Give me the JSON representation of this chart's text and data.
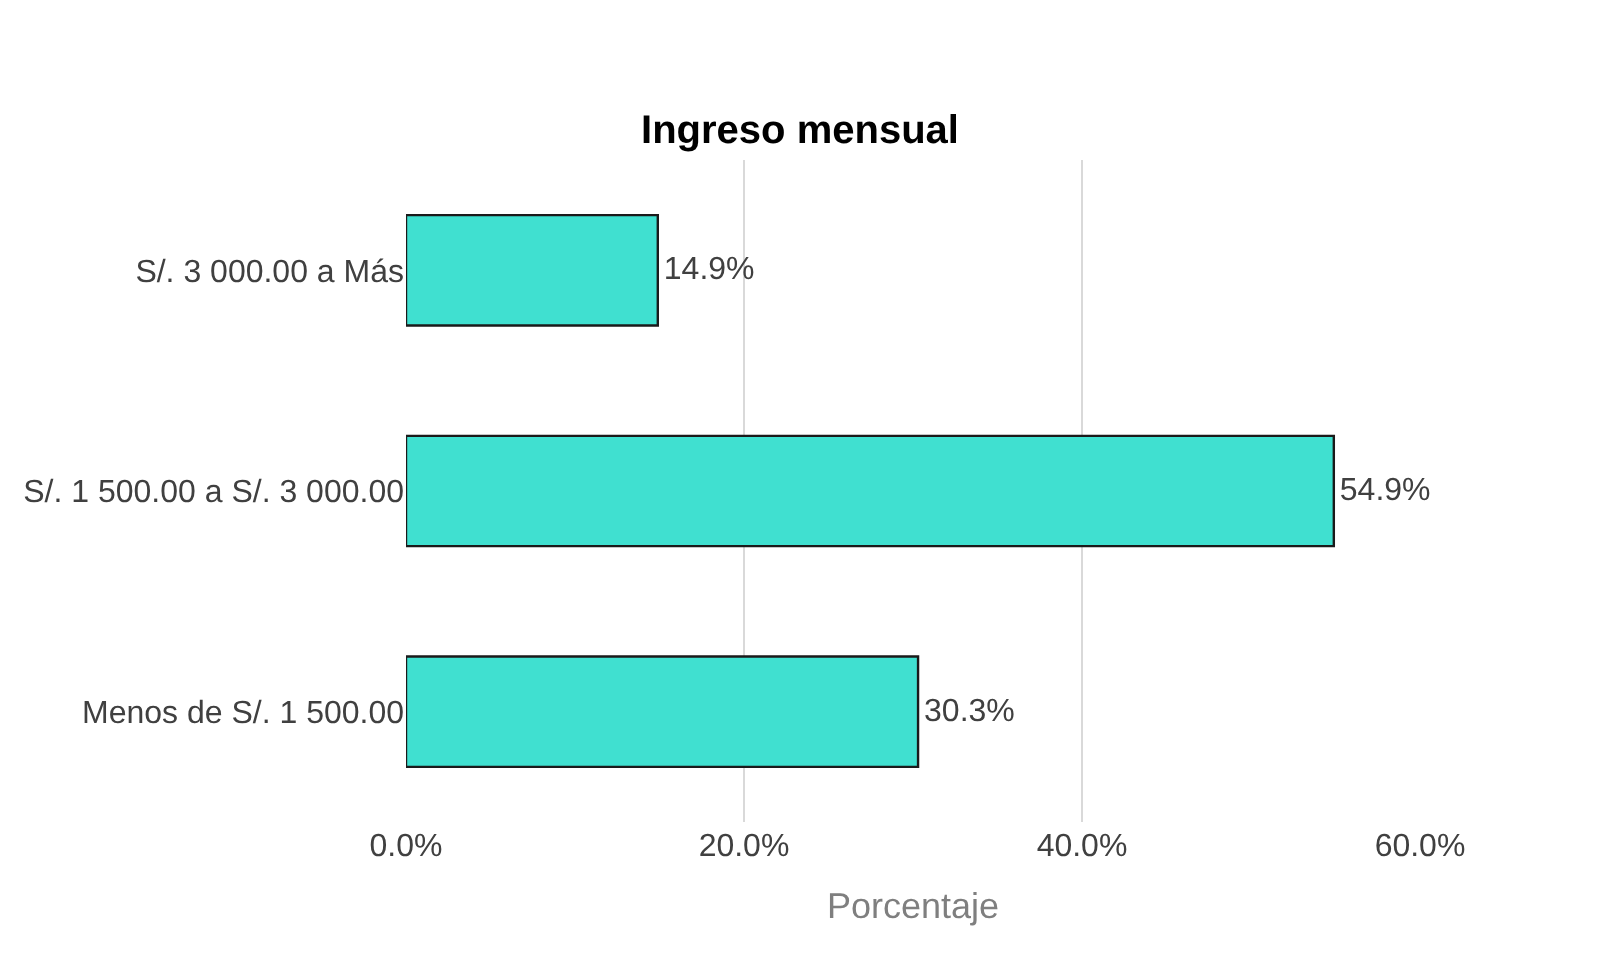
{
  "chart_data": {
    "type": "bar",
    "orientation": "horizontal",
    "title": "Ingreso mensual",
    "xlabel": "Porcentaje",
    "categories": [
      "S/. 3 000.00 a Más",
      "S/. 1 500.00 a S/. 3 000.00",
      "Menos de S/. 1 500.00"
    ],
    "values": [
      14.9,
      54.9,
      30.3
    ],
    "value_labels": [
      "14.9%",
      "54.9%",
      "30.3%"
    ],
    "color": "#40e0d0",
    "xlim": [
      0,
      60
    ],
    "xticks": [
      {
        "value": 0,
        "label": "0.0%"
      },
      {
        "value": 20,
        "label": "20.0%"
      },
      {
        "value": 40,
        "label": "40.0%"
      },
      {
        "value": 60,
        "label": "60.0%"
      }
    ],
    "grid": "x",
    "legend": false
  }
}
